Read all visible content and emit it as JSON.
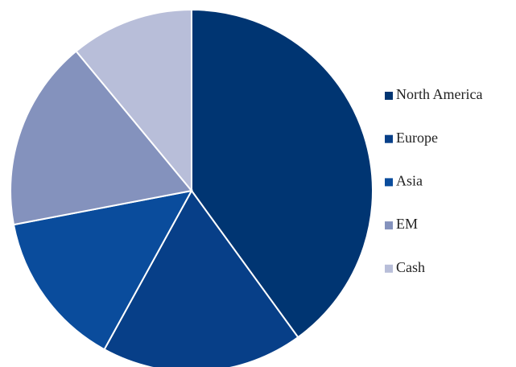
{
  "chart_data": {
    "type": "pie",
    "categories": [
      "North America",
      "Europe",
      "Asia",
      "EM",
      "Cash"
    ],
    "values": [
      40,
      18,
      14,
      17,
      11
    ],
    "colors": [
      "#003572",
      "#073f88",
      "#0a4c9c",
      "#8492bd",
      "#b8bed9"
    ],
    "legend": "right"
  }
}
